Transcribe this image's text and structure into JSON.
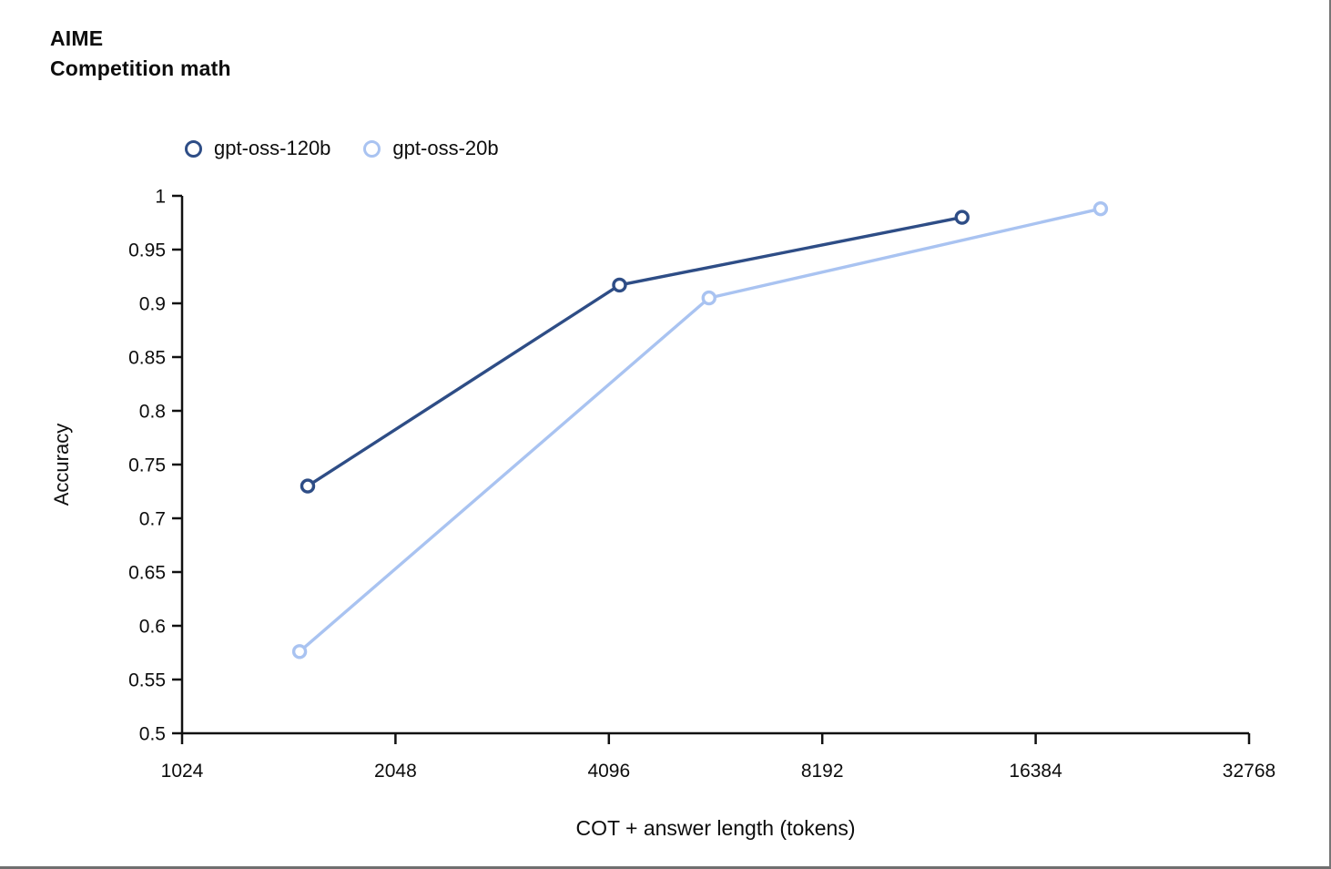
{
  "page": {
    "title_line1": "AIME",
    "title_line2": "Competition math"
  },
  "chart_data": {
    "type": "line",
    "title": "AIME Competition math",
    "xlabel": "COT + answer length (tokens)",
    "ylabel": "Accuracy",
    "x_scale": "log2",
    "xlim": [
      1024,
      32768
    ],
    "ylim": [
      0.5,
      1.0
    ],
    "x_ticks": [
      1024,
      2048,
      4096,
      8192,
      16384,
      32768
    ],
    "x_tick_labels": [
      "1024",
      "2048",
      "4096",
      "8192",
      "16384",
      "32768"
    ],
    "y_ticks": [
      1.0,
      0.95,
      0.9,
      0.85,
      0.8,
      0.75,
      0.7,
      0.65,
      0.6,
      0.55,
      0.5
    ],
    "y_tick_labels": [
      "1",
      "0.95",
      "0.9",
      "0.85",
      "0.8",
      "0.75",
      "0.7",
      "0.65",
      "0.6",
      "0.55",
      "0.5"
    ],
    "grid": false,
    "legend_position": "top",
    "marker": "open-circle",
    "series": [
      {
        "name": "gpt-oss-120b",
        "color": "#2e4d86",
        "x": [
          1540,
          4240,
          12900
        ],
        "y": [
          0.73,
          0.917,
          0.98
        ]
      },
      {
        "name": "gpt-oss-20b",
        "color": "#a9c3f1",
        "x": [
          1500,
          5670,
          20230
        ],
        "y": [
          0.576,
          0.905,
          0.988
        ]
      }
    ]
  },
  "colors": {
    "axis": "#111111",
    "text": "#0d0d0d",
    "marker_fill": "#ffffff",
    "frame_border": "#767676",
    "background": "#ffffff"
  }
}
